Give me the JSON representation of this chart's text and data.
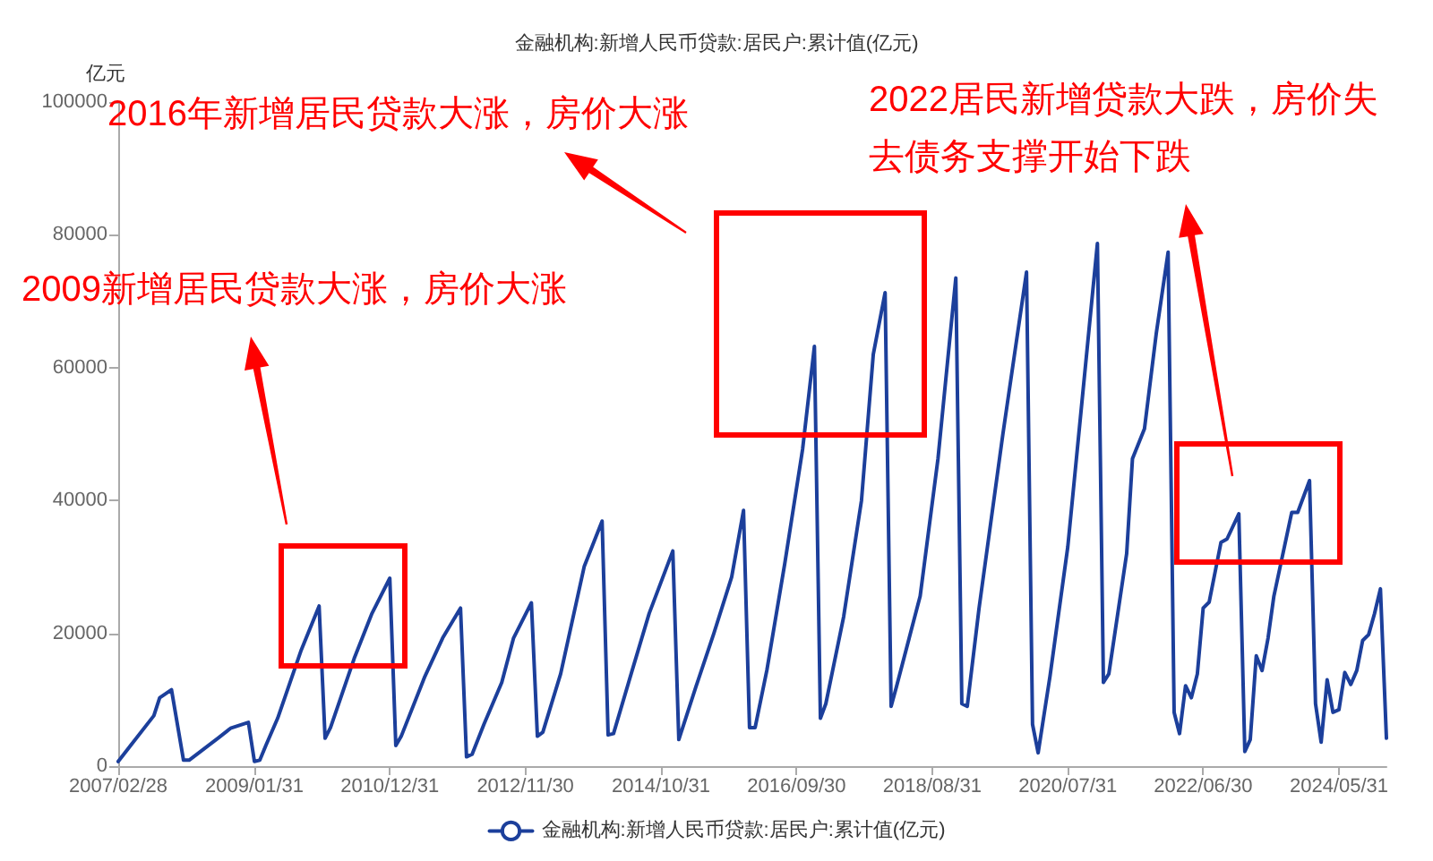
{
  "chart_data": {
    "type": "line",
    "title": "金融机构:新增人民币贷款:居民户:累计值(亿元)",
    "ylabel": "亿元",
    "x": [
      "2007-02-28",
      "2007-04-30",
      "2007-08-31",
      "2007-09-30",
      "2007-11-30",
      "2008-01-31",
      "2008-02-29",
      "2008-07-31",
      "2008-09-30",
      "2008-12-31",
      "2009-01-31",
      "2009-02-28",
      "2009-03-31",
      "2009-05-31",
      "2009-09-30",
      "2009-12-31",
      "2010-01-31",
      "2010-02-28",
      "2010-06-30",
      "2010-09-30",
      "2010-12-31",
      "2011-01-31",
      "2011-02-28",
      "2011-06-30",
      "2011-09-30",
      "2011-12-31",
      "2012-01-31",
      "2012-02-29",
      "2012-04-30",
      "2012-07-31",
      "2012-09-30",
      "2012-12-31",
      "2013-01-31",
      "2013-02-28",
      "2013-05-31",
      "2013-09-30",
      "2013-12-31",
      "2014-01-31",
      "2014-02-28",
      "2014-05-31",
      "2014-08-31",
      "2014-12-31",
      "2015-01-31",
      "2015-04-30",
      "2015-07-31",
      "2015-10-31",
      "2015-12-31",
      "2016-01-31",
      "2016-02-29",
      "2016-04-30",
      "2016-07-31",
      "2016-10-31",
      "2016-12-31",
      "2017-01-31",
      "2017-02-28",
      "2017-05-31",
      "2017-08-31",
      "2017-10-31",
      "2017-12-31",
      "2018-01-31",
      "2018-02-28",
      "2018-06-30",
      "2018-09-30",
      "2018-12-31",
      "2019-01-31",
      "2019-02-28",
      "2019-04-30",
      "2019-08-31",
      "2019-12-31",
      "2020-01-31",
      "2020-02-29",
      "2020-04-30",
      "2020-07-31",
      "2020-12-31",
      "2021-01-31",
      "2021-02-28",
      "2021-05-31",
      "2021-06-30",
      "2021-08-31",
      "2021-10-31",
      "2021-12-31",
      "2022-01-31",
      "2022-02-28",
      "2022-03-31",
      "2022-04-30",
      "2022-05-31",
      "2022-06-30",
      "2022-07-31",
      "2022-09-30",
      "2022-10-31",
      "2022-12-31",
      "2023-01-31",
      "2023-02-28",
      "2023-03-31",
      "2023-04-30",
      "2023-05-31",
      "2023-06-30",
      "2023-09-30",
      "2023-10-31",
      "2023-12-31",
      "2024-01-31",
      "2024-02-29",
      "2024-03-31",
      "2024-04-30",
      "2024-05-31",
      "2024-06-30",
      "2024-07-31",
      "2024-08-31",
      "2024-09-30",
      "2024-10-31",
      "2024-11-30",
      "2024-12-31",
      "2025-01-31"
    ],
    "series": [
      {
        "name": "金融机构:新增人民币贷款:居民户:累计值(亿元)",
        "color": "#1c3f9b",
        "values": [
          700,
          3000,
          7600,
          10300,
          11500,
          900,
          900,
          4300,
          5700,
          6600,
          700,
          900,
          3100,
          7200,
          17500,
          24100,
          4200,
          5800,
          16200,
          23000,
          28300,
          3100,
          4500,
          13500,
          19300,
          23800,
          1400,
          1800,
          6300,
          12600,
          19300,
          24600,
          4500,
          5100,
          13900,
          30100,
          36900,
          4700,
          4900,
          14000,
          23000,
          32400,
          4000,
          12000,
          20000,
          28500,
          38500,
          5800,
          5800,
          14500,
          30500,
          47700,
          63200,
          7200,
          9400,
          22500,
          40000,
          62000,
          71300,
          9000,
          12000,
          25600,
          46300,
          73500,
          9400,
          9000,
          23800,
          50000,
          74400,
          6300,
          2000,
          13500,
          33000,
          78700,
          12600,
          13900,
          32000,
          46300,
          50800,
          65200,
          77400,
          8100,
          4900,
          12100,
          10300,
          13900,
          23800,
          24700,
          33700,
          34200,
          38000,
          2200,
          4000,
          16600,
          14400,
          19300,
          25600,
          38200,
          38200,
          43000,
          9400,
          3600,
          13000,
          8100,
          8500,
          14100,
          12300,
          14400,
          18900,
          19800,
          22900,
          26700,
          4200
        ]
      }
    ],
    "xlim": [
      "2007-02-28",
      "2025-01-31"
    ],
    "xticks": [
      {
        "value": "2007-02-28",
        "label": "2007/02/28"
      },
      {
        "value": "2009-01-31",
        "label": "2009/01/31"
      },
      {
        "value": "2010-12-31",
        "label": "2010/12/31"
      },
      {
        "value": "2012-11-30",
        "label": "2012/11/30"
      },
      {
        "value": "2014-10-31",
        "label": "2014/10/31"
      },
      {
        "value": "2016-09-30",
        "label": "2016/09/30"
      },
      {
        "value": "2018-08-31",
        "label": "2018/08/31"
      },
      {
        "value": "2020-07-31",
        "label": "2020/07/31"
      },
      {
        "value": "2022-06-30",
        "label": "2022/06/30"
      },
      {
        "value": "2024-05-31",
        "label": "2024/05/31"
      }
    ],
    "ylim": [
      0,
      100000
    ],
    "yticks": [
      0,
      20000,
      40000,
      60000,
      80000,
      100000
    ],
    "legend": "bottom",
    "marker": "none",
    "line_style": "solid",
    "annotations": [
      "2009新增居民贷款大涨，房价大涨",
      "2016年新增居民贷款大涨，房价大涨",
      "2022居民新增贷款大跌，房价失去债务支撑开始下跌"
    ]
  }
}
